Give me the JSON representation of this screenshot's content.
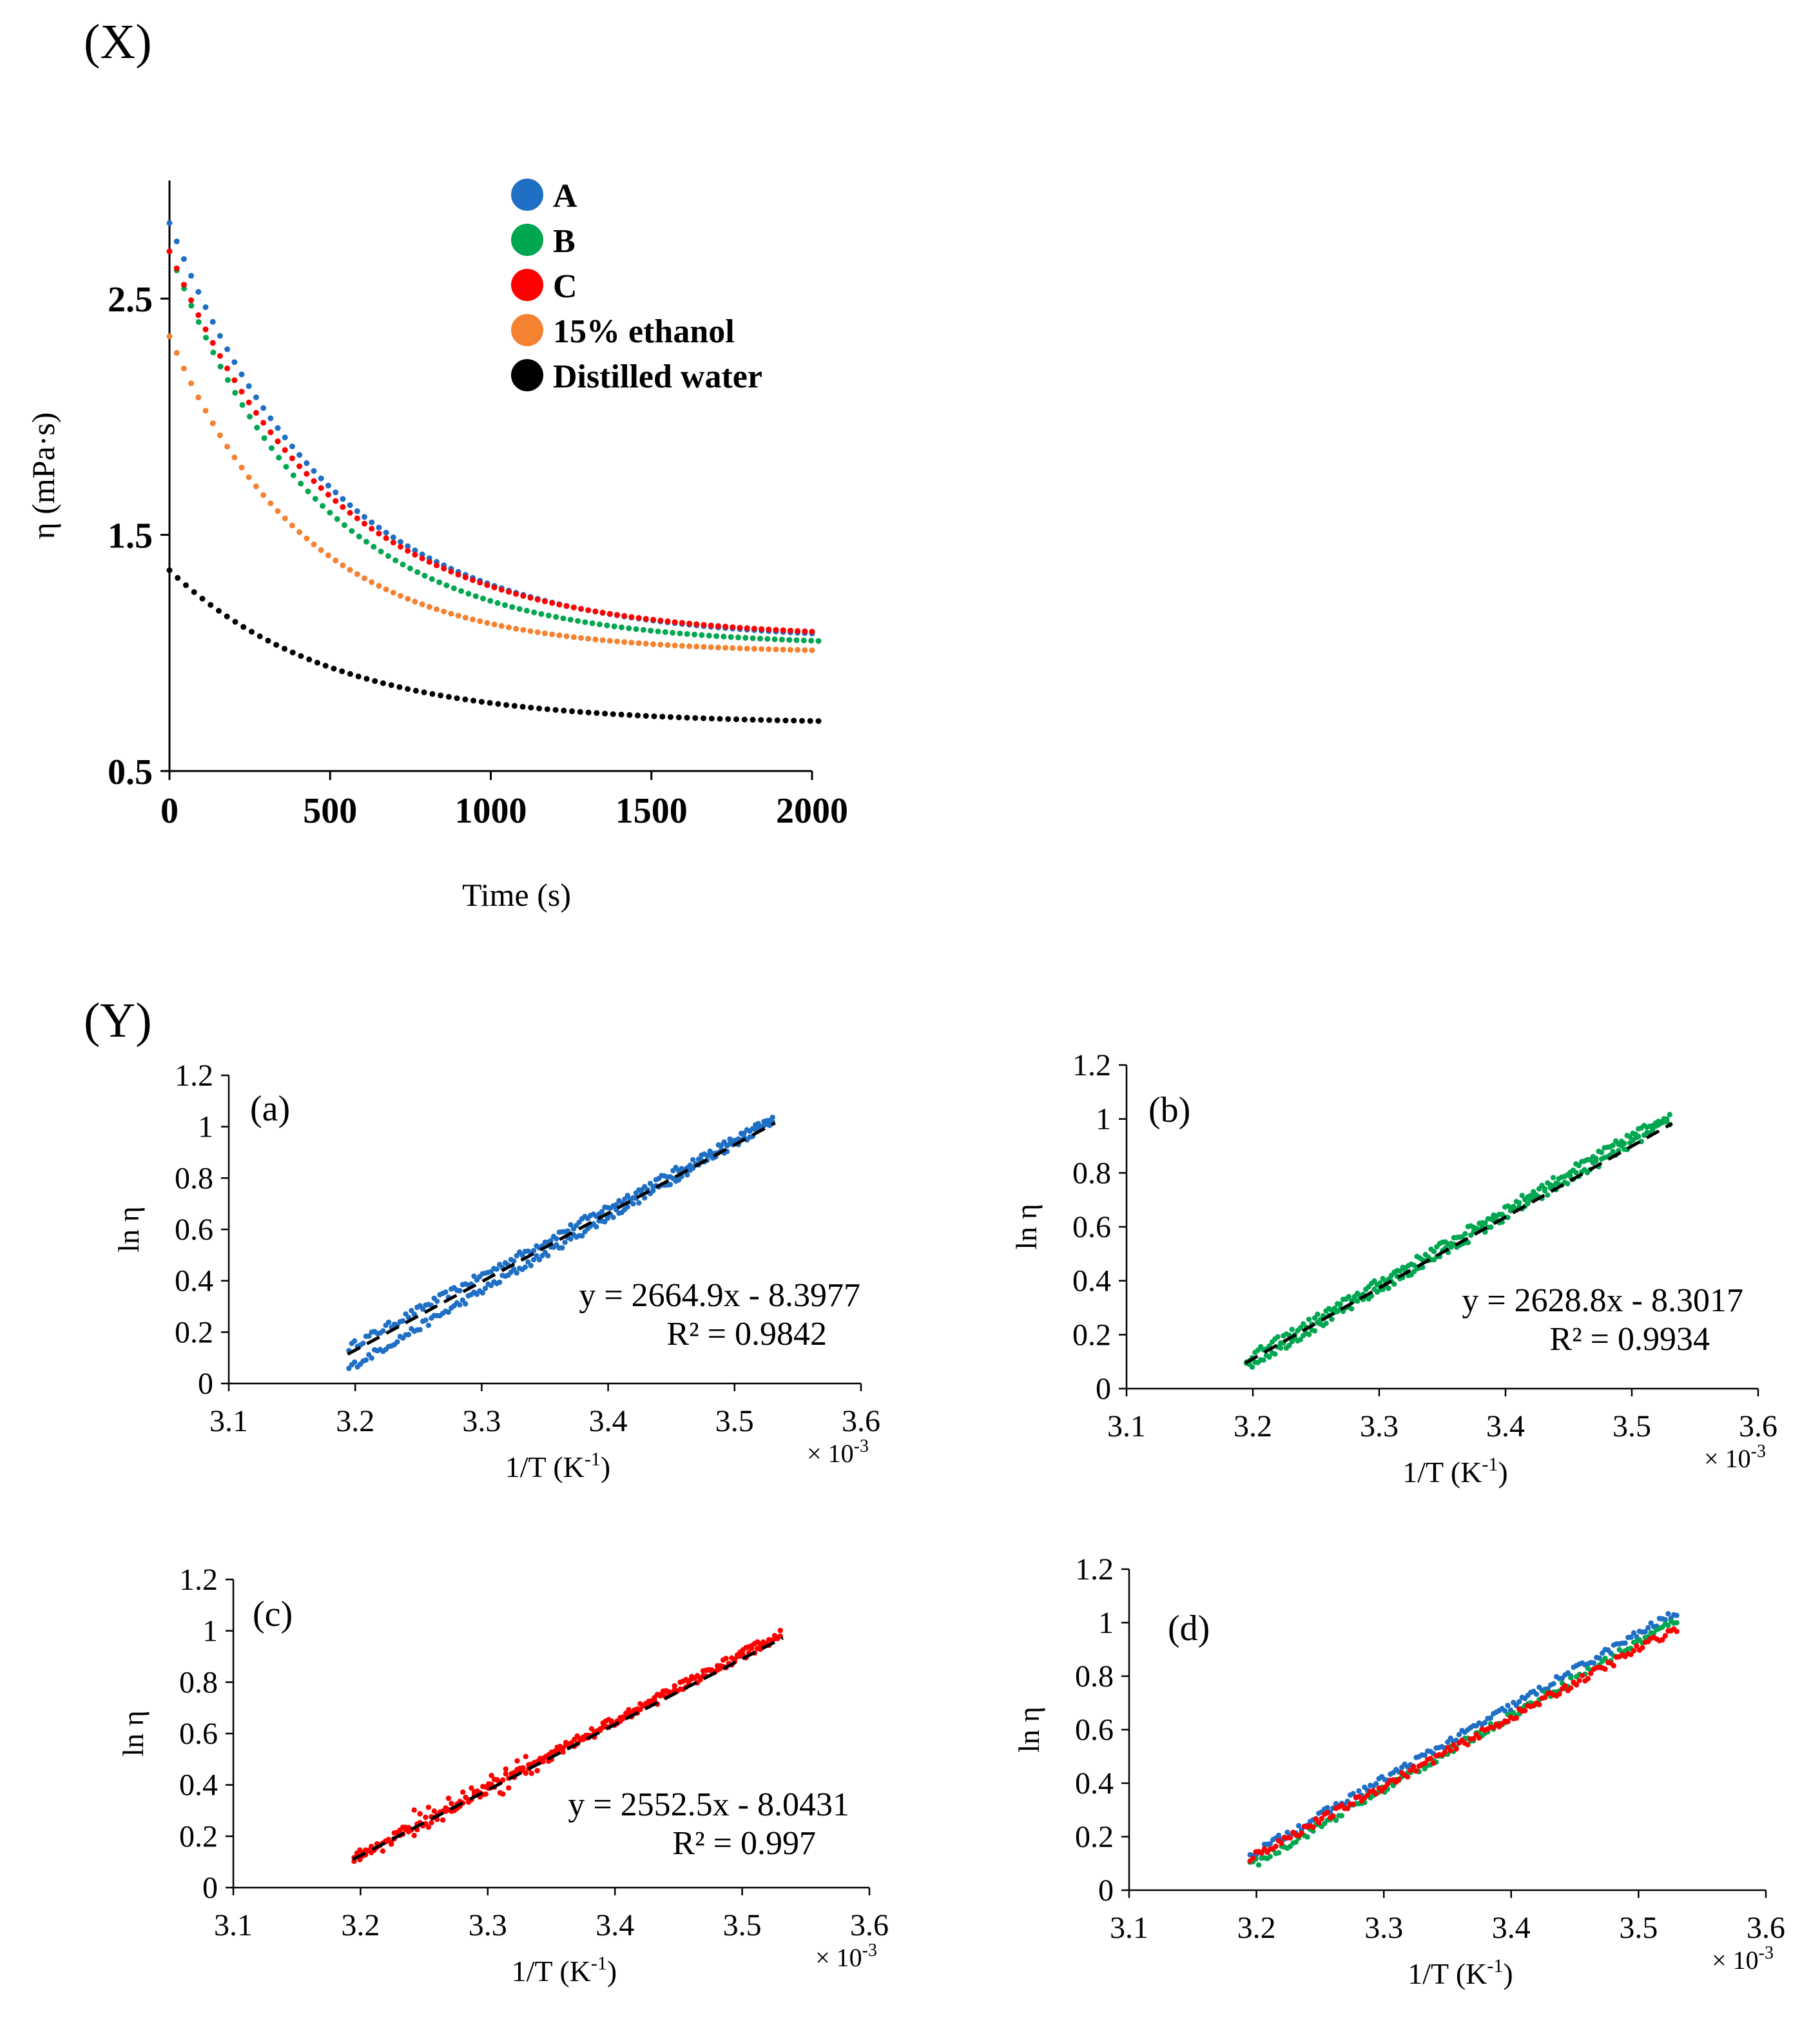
{
  "figure": {
    "panel_x_label": "(X)",
    "panel_y_label": "(Y)"
  },
  "chart_data": [
    {
      "id": "X",
      "type": "scatter",
      "title": "",
      "xlabel": "Time (s)",
      "ylabel": "η (mPa·s)",
      "xlim": [
        0,
        2000
      ],
      "ylim": [
        0.5,
        3.0
      ],
      "xticks": [
        0,
        500,
        1000,
        1500,
        2000
      ],
      "yticks": [
        0.5,
        1.5,
        2.5
      ],
      "grid": false,
      "legend_placement": "top",
      "series": [
        {
          "name": "A",
          "color": "#1f6fc5",
          "model": {
            "eta_inf": 1.05,
            "amp": 1.77,
            "tau": 500
          },
          "x_range": [
            0,
            2000
          ],
          "n": 90
        },
        {
          "name": "B",
          "color": "#00a650",
          "model": {
            "eta_inf": 1.03,
            "amp": 1.67,
            "tau": 460
          },
          "x_range": [
            0,
            2020
          ],
          "n": 90
        },
        {
          "name": "C",
          "color": "#ff0000",
          "model": {
            "eta_inf": 1.06,
            "amp": 1.64,
            "tau": 500
          },
          "x_range": [
            0,
            2000
          ],
          "n": 90
        },
        {
          "name": "15% ethanol",
          "color": "#f58231",
          "model": {
            "eta_inf": 1.0,
            "amp": 1.34,
            "tau": 420
          },
          "x_range": [
            0,
            2000
          ],
          "n": 90
        },
        {
          "name": "Distilled water",
          "color": "#000000",
          "model": {
            "eta_inf": 0.7,
            "amp": 0.65,
            "tau": 500
          },
          "x_range": [
            0,
            2020
          ],
          "n": 80
        }
      ]
    },
    {
      "id": "a",
      "type": "scatter",
      "sub_label": "(a)",
      "xlabel": "1/T (K",
      "xlabel_sup": "-1",
      "xlabel_end": ")",
      "ylabel": "ln η",
      "scale_note": "× 10",
      "scale_note_sup": "-3",
      "xlim": [
        3.1,
        3.6
      ],
      "ylim": [
        0,
        1.2
      ],
      "xticks": [
        "3.1",
        "3.2",
        "3.3",
        "3.4",
        "3.5",
        "3.6"
      ],
      "yticks": [
        "0",
        "0.2",
        "0.4",
        "0.6",
        "0.8",
        "1",
        "1.2"
      ],
      "equation": "y = 2664.9x - 8.3977",
      "r2_text": "R² = 0.9842",
      "fit": {
        "slope": 2664.9,
        "intercept": -8.3977,
        "x_range": [
          3.194,
          3.532
        ]
      },
      "series": [
        {
          "name": "A",
          "color": "#1f6fc5",
          "lines": [
            {
              "x1": 3.195,
              "y1": 0.14,
              "x2": 3.53,
              "y2": 1.03
            },
            {
              "x1": 3.195,
              "y1": 0.06,
              "x2": 3.53,
              "y2": 1.02
            }
          ]
        }
      ]
    },
    {
      "id": "b",
      "type": "scatter",
      "sub_label": "(b)",
      "xlabel": "1/T (K",
      "xlabel_sup": "-1",
      "xlabel_end": ")",
      "ylabel": "ln η",
      "scale_note": "× 10",
      "scale_note_sup": "-3",
      "xlim": [
        3.1,
        3.6
      ],
      "ylim": [
        0,
        1.2
      ],
      "xticks": [
        "3.1",
        "3.2",
        "3.3",
        "3.4",
        "3.5",
        "3.6"
      ],
      "yticks": [
        "0",
        "0.2",
        "0.4",
        "0.6",
        "0.8",
        "1",
        "1.2"
      ],
      "equation": "y = 2628.8x - 8.3017",
      "r2_text": "R² = 0.9934",
      "fit": {
        "slope": 2628.8,
        "intercept": -8.3017,
        "x_range": [
          3.194,
          3.532
        ]
      },
      "series": [
        {
          "name": "B",
          "color": "#00a650",
          "lines": [
            {
              "x1": 3.195,
              "y1": 0.11,
              "x2": 3.53,
              "y2": 1.02
            },
            {
              "x1": 3.195,
              "y1": 0.08,
              "x2": 3.53,
              "y2": 0.99
            }
          ]
        }
      ]
    },
    {
      "id": "c",
      "type": "scatter",
      "sub_label": "(c)",
      "xlabel": "1/T (K",
      "xlabel_sup": "-1",
      "xlabel_end": ")",
      "ylabel": "ln η",
      "scale_note": "× 10",
      "scale_note_sup": "-3",
      "xlim": [
        3.1,
        3.6
      ],
      "ylim": [
        0,
        1.2
      ],
      "xticks": [
        "3.1",
        "3.2",
        "3.3",
        "3.4",
        "3.5",
        "3.6"
      ],
      "yticks": [
        "0",
        "0.2",
        "0.4",
        "0.6",
        "0.8",
        "1",
        "1.2"
      ],
      "equation": "y = 2552.5x - 8.0431",
      "r2_text": "R² = 0.997",
      "fit": {
        "slope": 2552.5,
        "intercept": -8.0431,
        "x_range": [
          3.194,
          3.532
        ]
      },
      "series": [
        {
          "name": "C",
          "color": "#ff0000",
          "lines": [
            {
              "x1": 3.195,
              "y1": 0.11,
              "x2": 3.53,
              "y2": 0.98
            },
            {
              "x1": 3.195,
              "y1": 0.12,
              "x2": 3.53,
              "y2": 0.99
            }
          ]
        }
      ]
    },
    {
      "id": "d",
      "type": "scatter",
      "sub_label": "(d)",
      "xlabel": "1/T (K",
      "xlabel_sup": "-1",
      "xlabel_end": ")",
      "ylabel": "ln η",
      "scale_note": "× 10",
      "scale_note_sup": "-3",
      "xlim": [
        3.1,
        3.6
      ],
      "ylim": [
        0,
        1.2
      ],
      "xticks": [
        "3.1",
        "3.2",
        "3.3",
        "3.4",
        "3.5",
        "3.6"
      ],
      "yticks": [
        "0",
        "0.2",
        "0.4",
        "0.6",
        "0.8",
        "1",
        "1.2"
      ],
      "series": [
        {
          "name": "A",
          "color": "#1f6fc5",
          "lines": [
            {
              "x1": 3.195,
              "y1": 0.13,
              "x2": 3.53,
              "y2": 1.04
            }
          ]
        },
        {
          "name": "B",
          "color": "#00a650",
          "lines": [
            {
              "x1": 3.195,
              "y1": 0.09,
              "x2": 3.53,
              "y2": 1.01
            }
          ]
        },
        {
          "name": "C",
          "color": "#ff0000",
          "lines": [
            {
              "x1": 3.195,
              "y1": 0.12,
              "x2": 3.53,
              "y2": 0.98
            }
          ]
        }
      ]
    }
  ]
}
